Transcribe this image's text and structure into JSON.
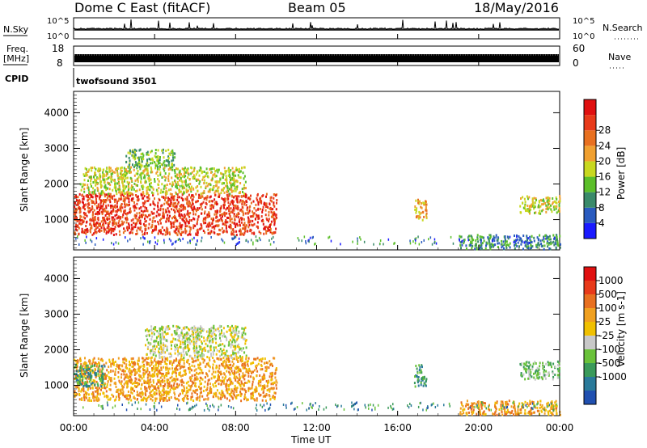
{
  "header": {
    "title": "Dome C East (fitACF)",
    "beam": "Beam 05",
    "date": "18/May/2016"
  },
  "top_panels": {
    "nsky_label": "N.Sky",
    "nsearch_label": "N.Search",
    "nsky_tick_top": "10^5",
    "nsky_tick_bottom": "10^0",
    "nsearch_tick_top": "10^5",
    "nsearch_tick_bottom": "10^0",
    "freq_label_1": "Freq.",
    "freq_label_2": "[MHz]",
    "freq_tick_top": "18",
    "freq_tick_bottom": "8",
    "nave_label": "Nave",
    "nave_tick_top": "60",
    "nave_tick_bottom": "0",
    "cpid_label": "CPID",
    "cpid_value": "twofsound 3501"
  },
  "colors": {
    "power": [
      "#1a1aff",
      "#2a5bbf",
      "#3a8a6a",
      "#5cbf2a",
      "#c8d820",
      "#f0a030",
      "#e87020",
      "#e83a1a",
      "#e01010"
    ],
    "velocity": [
      "#2050b0",
      "#2a7a9a",
      "#3a9a5a",
      "#6ac23a",
      "#c8c8c8",
      "#f0c000",
      "#f0a020",
      "#e87020",
      "#e83a1a",
      "#e01010"
    ]
  },
  "chart_data": [
    {
      "type": "heatmap",
      "name": "power-panel",
      "ylabel": "Slant Range [km]",
      "colorbar_label": "Power [dB]",
      "colorbar_ticks": [
        "4",
        "8",
        "12",
        "16",
        "20",
        "24",
        "28"
      ],
      "xlim": [
        0,
        24
      ],
      "ylim": [
        150,
        4600
      ],
      "yticks": [
        "1000",
        "2000",
        "3000",
        "4000"
      ],
      "blobs": [
        {
          "t0": 0.0,
          "t1": 10.0,
          "r0": 600,
          "r1": 1750,
          "level": 7
        },
        {
          "t0": 0.3,
          "t1": 8.5,
          "r0": 1750,
          "r1": 2500,
          "level": 4
        },
        {
          "t0": 2.5,
          "t1": 5.0,
          "r0": 2500,
          "r1": 3000,
          "level": 3
        },
        {
          "t0": 16.8,
          "t1": 17.4,
          "r0": 1000,
          "r1": 1600,
          "level": 5
        },
        {
          "t0": 19.0,
          "t1": 24.0,
          "r0": 200,
          "r1": 600,
          "level": 2
        },
        {
          "t0": 22.0,
          "t1": 24.0,
          "r0": 1200,
          "r1": 1700,
          "level": 4
        }
      ]
    },
    {
      "type": "heatmap",
      "name": "velocity-panel",
      "ylabel": "Slant Range [km]",
      "colorbar_label": "Velocity [m s-1]",
      "colorbar_ticks": [
        "1000",
        "500",
        "100",
        "25",
        "-25",
        "-100",
        "-500",
        "-1000"
      ],
      "xlim": [
        0,
        24
      ],
      "ylim": [
        150,
        4600
      ],
      "yticks": [
        "1000",
        "2000",
        "3000",
        "4000"
      ],
      "xticks": [
        "00:00",
        "04:00",
        "08:00",
        "12:00",
        "16:00",
        "20:00",
        "00:00"
      ],
      "xlabel": "Time UT",
      "blobs": [
        {
          "t0": 0.0,
          "t1": 10.0,
          "r0": 600,
          "r1": 1800,
          "level": 6
        },
        {
          "t0": 3.5,
          "t1": 8.5,
          "r0": 1800,
          "r1": 2700,
          "level": 4
        },
        {
          "t0": 0.0,
          "t1": 1.5,
          "r0": 1000,
          "r1": 1600,
          "level": 2
        },
        {
          "t0": 16.8,
          "t1": 17.4,
          "r0": 1000,
          "r1": 1600,
          "level": 2
        },
        {
          "t0": 19.0,
          "t1": 24.0,
          "r0": 200,
          "r1": 600,
          "level": 6
        },
        {
          "t0": 22.0,
          "t1": 24.0,
          "r0": 1200,
          "r1": 1700,
          "level": 3
        }
      ]
    }
  ]
}
